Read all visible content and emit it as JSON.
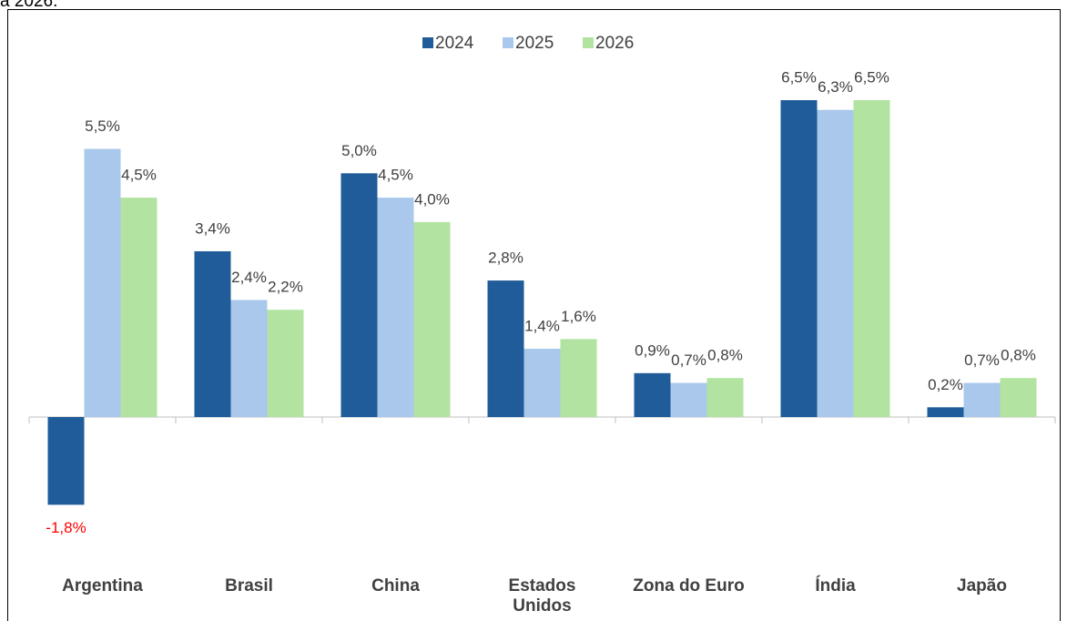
{
  "chart_data": {
    "type": "bar",
    "title": "a 2026.",
    "categories": [
      "Argentina",
      "Brasil",
      "China",
      "Estados Unidos",
      "Zona do Euro",
      "Índia",
      "Japão"
    ],
    "series": [
      {
        "name": "2024",
        "color": "#1f5c99",
        "values": [
          -1.8,
          3.4,
          5.0,
          2.8,
          0.9,
          6.5,
          0.2
        ],
        "value_labels": [
          "-1,8%",
          "3,4%",
          "5,0%",
          "2,8%",
          "0,9%",
          "6,5%",
          "0,2%"
        ]
      },
      {
        "name": "2025",
        "color": "#a9c8ec",
        "values": [
          5.5,
          2.4,
          4.5,
          1.4,
          0.7,
          6.3,
          0.7
        ],
        "value_labels": [
          "5,5%",
          "2,4%",
          "4,5%",
          "1,4%",
          "0,7%",
          "6,3%",
          "0,7%"
        ]
      },
      {
        "name": "2026",
        "color": "#b3e3a0",
        "values": [
          4.5,
          2.2,
          4.0,
          1.6,
          0.8,
          6.5,
          0.8
        ],
        "value_labels": [
          "4,5%",
          "2,2%",
          "4,0%",
          "1,6%",
          "0,8%",
          "6,5%",
          "0,8%"
        ]
      }
    ],
    "negative_label_color": "#ff0000",
    "legend": "top"
  }
}
